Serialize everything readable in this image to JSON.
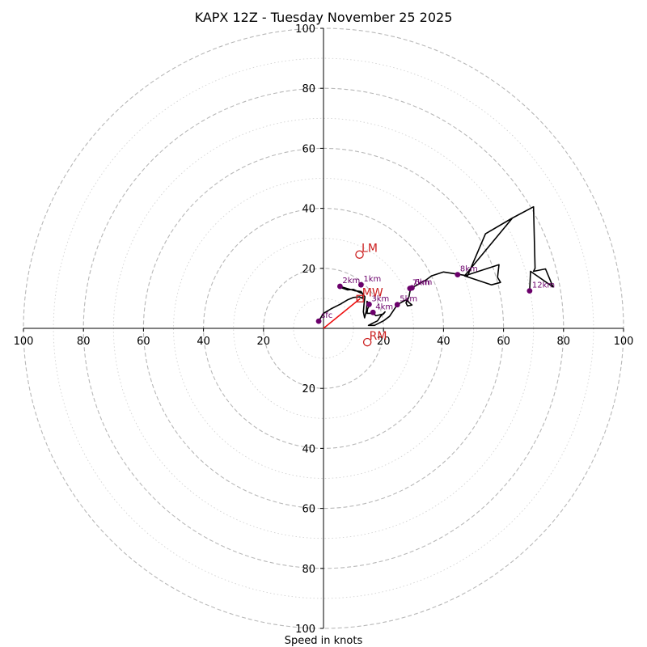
{
  "chart_data": {
    "type": "hodograph",
    "title": "KAPX 12Z - Tuesday November 25 2025",
    "xlabel": "Speed in knots",
    "ylabel": "",
    "units": "knots",
    "range": [
      -100,
      100
    ],
    "ring_step_minor": 10,
    "ring_step_major": 20,
    "x_ticks": [
      {
        "value": -100,
        "label": "100"
      },
      {
        "value": -80,
        "label": "80"
      },
      {
        "value": -60,
        "label": "60"
      },
      {
        "value": -40,
        "label": "40"
      },
      {
        "value": -20,
        "label": "20"
      },
      {
        "value": 20,
        "label": "20"
      },
      {
        "value": 40,
        "label": "40"
      },
      {
        "value": 60,
        "label": "60"
      },
      {
        "value": 80,
        "label": "80"
      },
      {
        "value": 100,
        "label": "100"
      }
    ],
    "y_ticks": [
      {
        "value": 100,
        "label": "100"
      },
      {
        "value": 80,
        "label": "80"
      },
      {
        "value": 60,
        "label": "60"
      },
      {
        "value": 40,
        "label": "40"
      },
      {
        "value": 20,
        "label": "20"
      },
      {
        "value": -20,
        "label": "20"
      },
      {
        "value": -40,
        "label": "40"
      },
      {
        "value": -60,
        "label": "60"
      },
      {
        "value": -80,
        "label": "80"
      },
      {
        "value": -100,
        "label": "100"
      }
    ],
    "grid": true,
    "colors": {
      "trace": "#000000",
      "height_points": "#6b006b",
      "markers": "#cc2020",
      "shear_vector": "#ee1111",
      "grid": "#b8b8b8"
    },
    "hodograph_trace": [
      [
        -1.6,
        2.4
      ],
      [
        0,
        5
      ],
      [
        2.5,
        6.5
      ],
      [
        5.5,
        8
      ],
      [
        8,
        9.5
      ],
      [
        10,
        10.3
      ],
      [
        12,
        10.5
      ],
      [
        13,
        10
      ],
      [
        13.2,
        11.5
      ],
      [
        12,
        12
      ],
      [
        10,
        13
      ],
      [
        8,
        12.8
      ],
      [
        6,
        13.5
      ],
      [
        5.5,
        14
      ],
      [
        10.5,
        12.5
      ],
      [
        12.5,
        12.3
      ],
      [
        13.8,
        10.5
      ],
      [
        13.5,
        8
      ],
      [
        13.3,
        5.5
      ],
      [
        13.7,
        3.5
      ],
      [
        14.3,
        6
      ],
      [
        14.5,
        9
      ],
      [
        15.5,
        8
      ],
      [
        14.7,
        6.5
      ],
      [
        14.5,
        5
      ],
      [
        16.5,
        5
      ],
      [
        17.5,
        4.2
      ],
      [
        20,
        4.8
      ],
      [
        20.5,
        5.5
      ],
      [
        19,
        4
      ],
      [
        18,
        2.5
      ],
      [
        16,
        1.5
      ],
      [
        15,
        1
      ],
      [
        17,
        1
      ],
      [
        20,
        2.5
      ],
      [
        22,
        4
      ],
      [
        24.6,
        7.9
      ],
      [
        27.5,
        9.5
      ],
      [
        29.5,
        7.8
      ],
      [
        28,
        7.5
      ],
      [
        27.5,
        8.5
      ],
      [
        28.5,
        10.5
      ],
      [
        29,
        13.3
      ],
      [
        30,
        13.8
      ],
      [
        34,
        16
      ],
      [
        36,
        17.5
      ],
      [
        40,
        18.8
      ],
      [
        45,
        18
      ],
      [
        48,
        17.5
      ],
      [
        54,
        31.5
      ],
      [
        63,
        36.8
      ],
      [
        47,
        17.5
      ],
      [
        56,
        14.5
      ],
      [
        59,
        15.3
      ],
      [
        58,
        17
      ],
      [
        58.5,
        21.2
      ],
      [
        47,
        17.5
      ],
      [
        63,
        36.8
      ],
      [
        70,
        40.5
      ],
      [
        70.5,
        20
      ],
      [
        70,
        19
      ],
      [
        74,
        19.8
      ],
      [
        76.5,
        13.8
      ],
      [
        69,
        19
      ],
      [
        68.7,
        12.5
      ]
    ],
    "height_points": [
      {
        "label": "sfc",
        "x": -1.6,
        "y": 2.4
      },
      {
        "label": "1km",
        "x": 12.5,
        "y": 14.5
      },
      {
        "label": "2km",
        "x": 5.5,
        "y": 14
      },
      {
        "label": "3km",
        "x": 15.2,
        "y": 8
      },
      {
        "label": "4km",
        "x": 16.5,
        "y": 5.3
      },
      {
        "label": "5km",
        "x": 24.6,
        "y": 7.9
      },
      {
        "label": "6km",
        "x": 29.5,
        "y": 13.5
      },
      {
        "label": "7km",
        "x": 28.8,
        "y": 13.3
      },
      {
        "label": "8km",
        "x": 44.7,
        "y": 17.9
      },
      {
        "label": "12km",
        "x": 68.7,
        "y": 12.5
      }
    ],
    "markers": [
      {
        "label": "LM",
        "x": 12,
        "y": 24.6,
        "style": "open-circle"
      },
      {
        "label": "MW",
        "x": 12.2,
        "y": 9.9,
        "style": "open-square"
      },
      {
        "label": "RM",
        "x": 14.6,
        "y": -4.6,
        "style": "open-circle"
      }
    ],
    "shear_vector": {
      "from": [
        0,
        0
      ],
      "to": [
        12.2,
        9.9
      ]
    }
  }
}
